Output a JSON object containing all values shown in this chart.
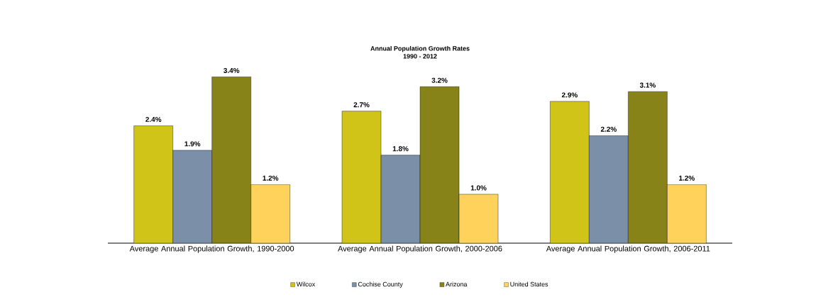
{
  "chart_data": {
    "type": "bar",
    "title": "Annual Population Growth Rates",
    "subtitle": "1990 - 2012",
    "categories": [
      "Average Annual Population Growth, 1990-2000",
      "Average Annual Population Growth, 2000-2006",
      "Average Annual Population Growth, 2006-2011"
    ],
    "series": [
      {
        "name": "Wilcox",
        "color": "#d1c418",
        "values": [
          2.4,
          2.7,
          2.9
        ],
        "value_labels": [
          "2.4%",
          "2.7%",
          "2.9%"
        ]
      },
      {
        "name": "Cochise County",
        "color": "#7b8fa9",
        "values": [
          1.9,
          1.8,
          2.2
        ],
        "value_labels": [
          "1.9%",
          "1.8%",
          "2.2%"
        ]
      },
      {
        "name": "Arizona",
        "color": "#878318",
        "values": [
          3.4,
          3.2,
          3.1
        ],
        "value_labels": [
          "3.4%",
          "3.2%",
          "3.1%"
        ]
      },
      {
        "name": "United States",
        "color": "#ffd35b",
        "values": [
          1.2,
          1.0,
          1.2
        ],
        "value_labels": [
          "1.2%",
          "1.0%",
          "1.2%"
        ]
      }
    ],
    "legend": "bottom"
  }
}
